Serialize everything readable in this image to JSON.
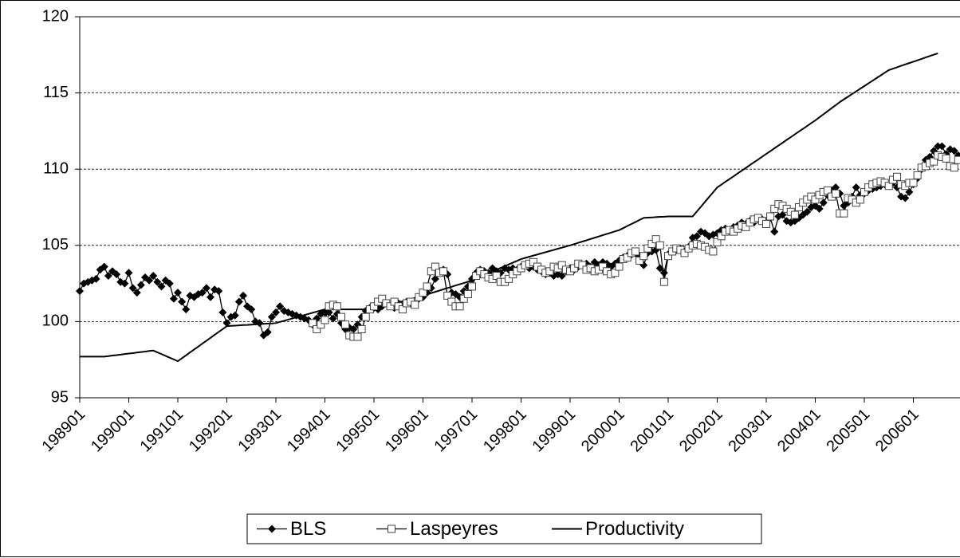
{
  "chart_data": {
    "type": "line",
    "categories": [
      "198901",
      null,
      null,
      null,
      null,
      null,
      null,
      null,
      null,
      null,
      null,
      null,
      "199001",
      null,
      null,
      null,
      null,
      null,
      null,
      null,
      null,
      null,
      null,
      null,
      "199101",
      null,
      null,
      null,
      null,
      null,
      null,
      null,
      null,
      null,
      null,
      null,
      "199201",
      null,
      null,
      null,
      null,
      null,
      null,
      null,
      null,
      null,
      null,
      null,
      "199301",
      null,
      null,
      null,
      null,
      null,
      null,
      null,
      null,
      null,
      null,
      null,
      "199401",
      null,
      null,
      null,
      null,
      null,
      null,
      null,
      null,
      null,
      null,
      null,
      "199501",
      null,
      null,
      null,
      null,
      null,
      null,
      null,
      null,
      null,
      null,
      null,
      "199601",
      null,
      null,
      null,
      null,
      null,
      null,
      null,
      null,
      null,
      null,
      null,
      "199701",
      null,
      null,
      null,
      null,
      null,
      null,
      null,
      null,
      null,
      null,
      null,
      "199801",
      null,
      null,
      null,
      null,
      null,
      null,
      null,
      null,
      null,
      null,
      null,
      "199901",
      null,
      null,
      null,
      null,
      null,
      null,
      null,
      null,
      null,
      null,
      null,
      "200001",
      null,
      null,
      null,
      null,
      null,
      null,
      null,
      null,
      null,
      null,
      null,
      "200101",
      null,
      null,
      null,
      null,
      null,
      null,
      null,
      null,
      null,
      null,
      null,
      "200201",
      null,
      null,
      null,
      null,
      null,
      null,
      null,
      null,
      null,
      null,
      null,
      "200301",
      null,
      null,
      null,
      null,
      null,
      null,
      null,
      null,
      null,
      null,
      null,
      "200401",
      null,
      null,
      null,
      null,
      null,
      null,
      null,
      null,
      null,
      null,
      null,
      "200501",
      null,
      null,
      null,
      null,
      null,
      null,
      null,
      null,
      null,
      null,
      null,
      "200601",
      null,
      null,
      null,
      null,
      null,
      null,
      null,
      null,
      null,
      null,
      null
    ],
    "series": [
      {
        "name": "BLS",
        "color": "#000000",
        "marker": "diamond",
        "values": [
          102.0,
          102.5,
          102.6,
          102.7,
          102.8,
          103.4,
          103.6,
          103.0,
          103.3,
          103.1,
          102.6,
          102.5,
          103.2,
          102.2,
          101.9,
          102.4,
          102.9,
          102.7,
          103.0,
          102.6,
          102.3,
          102.7,
          102.5,
          101.5,
          101.9,
          101.3,
          100.8,
          101.7,
          101.6,
          101.8,
          101.9,
          102.2,
          101.6,
          102.1,
          102.0,
          100.6,
          99.9,
          100.3,
          100.4,
          101.3,
          101.7,
          101.0,
          100.8,
          100.0,
          99.9,
          99.1,
          99.3,
          100.3,
          100.6,
          101.0,
          100.7,
          100.6,
          100.5,
          100.4,
          100.3,
          100.2,
          100.1,
          99.8,
          100.2,
          100.5,
          100.6,
          100.6,
          100.2,
          100.5,
          99.9,
          99.5,
          99.6,
          99.5,
          99.8,
          100.3,
          100.7,
          100.9,
          100.9,
          100.8,
          101.0,
          101.2,
          101.0,
          100.9,
          101.2,
          101.1,
          101.3,
          101.2,
          101.1,
          101.5,
          101.6,
          101.9,
          102.2,
          102.8,
          103.2,
          103.4,
          103.1,
          101.9,
          101.8,
          101.6,
          102.0,
          102.3,
          102.8,
          103.2,
          103.4,
          103.3,
          103.2,
          103.5,
          103.3,
          103.2,
          103.5,
          103.4,
          103.5,
          103.4,
          103.6,
          103.7,
          103.5,
          103.6,
          103.4,
          103.3,
          103.1,
          103.2,
          103.0,
          103.1,
          103.0,
          103.3,
          103.5,
          103.4,
          103.6,
          103.7,
          103.8,
          103.6,
          103.9,
          103.7,
          103.9,
          103.8,
          103.6,
          103.8,
          104.0,
          104.2,
          104.3,
          104.4,
          104.5,
          104.3,
          103.7,
          104.5,
          104.6,
          104.7,
          103.5,
          103.2,
          104.4,
          104.6,
          104.7,
          104.8,
          104.6,
          104.9,
          105.5,
          105.6,
          105.9,
          105.8,
          105.6,
          105.7,
          105.8,
          106.0,
          106.1,
          106.0,
          106.2,
          106.3,
          106.5,
          106.4,
          106.6,
          106.5,
          106.8,
          106.7,
          106.6,
          106.8,
          105.9,
          106.9,
          107.0,
          106.6,
          106.5,
          106.6,
          106.8,
          107.0,
          107.2,
          107.5,
          107.6,
          107.4,
          107.8,
          108.3,
          108.6,
          108.8,
          108.4,
          107.6,
          107.8,
          108.2,
          108.8,
          108.3,
          108.4,
          108.6,
          108.7,
          108.8,
          108.9,
          109.0,
          108.9,
          109.1,
          108.8,
          108.2,
          108.1,
          108.5,
          109.0,
          109.4,
          110.0,
          110.6,
          110.8,
          111.2,
          111.5,
          111.5,
          111.0,
          111.3,
          111.2,
          110.9
        ]
      },
      {
        "name": "Laspeyres",
        "color": "#000000",
        "marker": "square",
        "values": [
          null,
          null,
          null,
          null,
          null,
          null,
          null,
          null,
          null,
          null,
          null,
          null,
          null,
          null,
          null,
          null,
          null,
          null,
          null,
          null,
          null,
          null,
          null,
          null,
          null,
          null,
          null,
          null,
          null,
          null,
          null,
          null,
          null,
          null,
          null,
          null,
          null,
          null,
          null,
          null,
          null,
          null,
          null,
          null,
          null,
          null,
          null,
          null,
          null,
          null,
          null,
          null,
          null,
          null,
          null,
          null,
          null,
          99.9,
          99.5,
          99.8,
          100.1,
          101.0,
          101.1,
          101.0,
          100.3,
          99.8,
          99.1,
          99.0,
          99.0,
          99.5,
          100.3,
          100.8,
          101.0,
          101.3,
          101.5,
          101.2,
          101.0,
          101.3,
          101.0,
          100.8,
          101.2,
          101.3,
          101.1,
          101.6,
          101.9,
          102.3,
          103.3,
          103.6,
          103.2,
          103.3,
          101.7,
          101.3,
          101.0,
          101.0,
          101.5,
          101.8,
          102.3,
          103.0,
          103.3,
          103.1,
          102.9,
          102.8,
          103.0,
          102.6,
          102.6,
          102.8,
          103.1,
          103.3,
          103.5,
          103.7,
          103.8,
          103.9,
          103.6,
          103.4,
          103.2,
          103.3,
          103.6,
          103.5,
          103.7,
          103.4,
          103.3,
          103.5,
          103.8,
          103.7,
          103.4,
          103.5,
          103.3,
          103.4,
          103.6,
          103.3,
          103.1,
          103.2,
          103.6,
          104.1,
          104.2,
          104.5,
          104.6,
          104.0,
          104.3,
          104.8,
          105.1,
          105.4,
          105.0,
          102.6,
          104.3,
          104.6,
          104.8,
          104.7,
          104.5,
          104.8,
          105.0,
          105.1,
          105.0,
          104.9,
          104.7,
          104.6,
          105.2,
          105.6,
          105.9,
          106.0,
          105.9,
          106.1,
          106.3,
          106.2,
          106.5,
          106.7,
          106.8,
          106.6,
          106.4,
          106.9,
          107.4,
          107.7,
          107.6,
          107.4,
          107.2,
          107.0,
          107.5,
          107.8,
          108.0,
          108.2,
          108.0,
          108.3,
          108.5,
          108.6,
          108.2,
          108.4,
          107.1,
          107.1,
          108.1,
          108.0,
          107.8,
          108.0,
          108.5,
          108.8,
          109.0,
          109.1,
          109.2,
          109.1,
          108.9,
          109.3,
          109.5,
          109.0,
          108.9,
          109.1,
          109.1,
          109.6,
          110.1,
          110.2,
          110.4,
          110.5,
          110.9,
          110.8,
          110.7,
          110.2,
          110.1,
          110.6
        ]
      },
      {
        "name": "Productivity",
        "color": "#000000",
        "values": [
          97.7,
          97.7,
          97.7,
          97.7,
          97.7,
          97.7,
          97.7,
          97.73,
          97.77,
          97.8,
          97.83,
          97.87,
          97.9,
          97.93,
          97.97,
          98.0,
          98.03,
          98.07,
          98.1,
          97.98,
          97.87,
          97.75,
          97.63,
          97.52,
          97.4,
          97.59,
          97.78,
          97.98,
          98.17,
          98.36,
          98.55,
          98.74,
          98.93,
          99.13,
          99.32,
          99.51,
          99.7,
          99.72,
          99.73,
          99.75,
          99.77,
          99.78,
          99.8,
          99.82,
          99.83,
          99.85,
          99.87,
          99.88,
          99.9,
          99.98,
          100.05,
          100.13,
          100.2,
          100.28,
          100.35,
          100.43,
          100.5,
          100.58,
          100.65,
          100.73,
          100.8,
          100.8,
          100.8,
          100.8,
          100.8,
          100.8,
          100.8,
          100.8,
          100.8,
          100.8,
          100.8,
          100.8,
          100.8,
          100.88,
          100.95,
          101.03,
          101.1,
          101.18,
          101.25,
          101.33,
          101.4,
          101.48,
          101.55,
          101.63,
          101.7,
          101.78,
          101.87,
          101.95,
          102.03,
          102.12,
          102.2,
          102.28,
          102.37,
          102.45,
          102.53,
          102.62,
          102.7,
          102.82,
          102.93,
          103.05,
          103.17,
          103.28,
          103.4,
          103.52,
          103.63,
          103.75,
          103.87,
          103.98,
          104.1,
          104.18,
          104.25,
          104.33,
          104.4,
          104.48,
          104.55,
          104.63,
          104.7,
          104.78,
          104.85,
          104.93,
          105.0,
          105.08,
          105.17,
          105.25,
          105.33,
          105.42,
          105.5,
          105.58,
          105.67,
          105.75,
          105.83,
          105.92,
          106.0,
          106.13,
          106.27,
          106.4,
          106.53,
          106.67,
          106.8,
          106.82,
          106.83,
          106.85,
          106.87,
          106.88,
          106.9,
          106.9,
          106.9,
          106.9,
          106.9,
          106.9,
          106.9,
          107.22,
          107.53,
          107.85,
          108.17,
          108.48,
          108.8,
          108.98,
          109.17,
          109.35,
          109.53,
          109.72,
          109.9,
          110.08,
          110.27,
          110.45,
          110.63,
          110.82,
          111.0,
          111.18,
          111.37,
          111.55,
          111.73,
          111.92,
          112.1,
          112.28,
          112.47,
          112.65,
          112.83,
          113.02,
          113.2,
          113.4,
          113.6,
          113.8,
          114.0,
          114.2,
          114.4,
          114.58,
          114.75,
          114.93,
          115.1,
          115.28,
          115.45,
          115.63,
          115.8,
          115.98,
          116.15,
          116.33,
          116.5,
          116.59,
          116.68,
          116.78,
          116.87,
          116.96,
          117.05,
          117.14,
          117.23,
          117.33,
          117.42,
          117.51,
          117.6,
          null,
          null,
          null,
          null,
          null
        ]
      }
    ],
    "ylim": [
      95,
      120
    ],
    "yticks": [
      95,
      100,
      105,
      110,
      115,
      120
    ],
    "grid": true,
    "legend": "bottom"
  }
}
